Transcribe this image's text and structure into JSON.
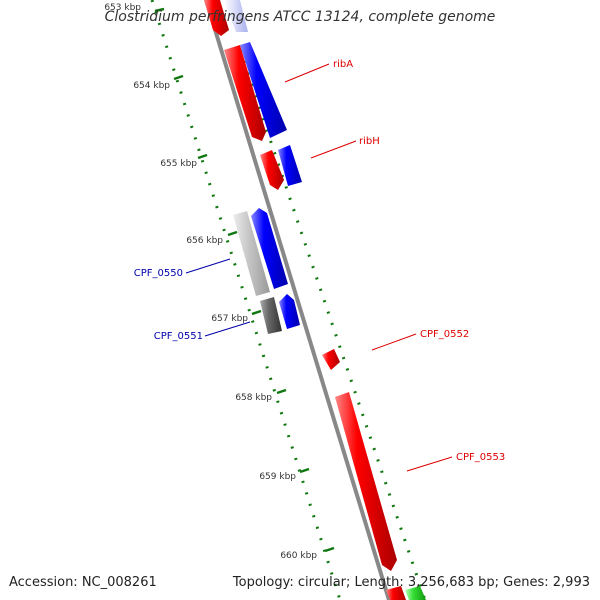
{
  "header": {
    "title": "Clostridium perfringens ATCC 13124, complete genome"
  },
  "ruler": [
    {
      "label": "653 kbp"
    },
    {
      "label": "654 kbp"
    },
    {
      "label": "655 kbp"
    },
    {
      "label": "656 kbp"
    },
    {
      "label": "657 kbp"
    },
    {
      "label": "658 kbp"
    },
    {
      "label": "659 kbp"
    },
    {
      "label": "660 kbp"
    }
  ],
  "genes": [
    {
      "name": "ribA",
      "color": "#dd0000"
    },
    {
      "name": "ribH",
      "color": "#dd0000"
    },
    {
      "name": "CPF_0550",
      "color": "#0000aa"
    },
    {
      "name": "CPF_0551",
      "color": "#0000aa"
    },
    {
      "name": "CPF_0552",
      "color": "#dd0000"
    },
    {
      "name": "CPF_0553",
      "color": "#dd0000"
    }
  ],
  "colors": {
    "forward": "#ff0000",
    "reverse": "#0000ff",
    "backbone": "#888888",
    "ticks": "#117711",
    "rna": "#33dd33"
  },
  "footer": {
    "accession": "Accession: NC_008261",
    "topology": "Topology: circular; Length: 3,256,683 bp; Genes: 2,993"
  }
}
